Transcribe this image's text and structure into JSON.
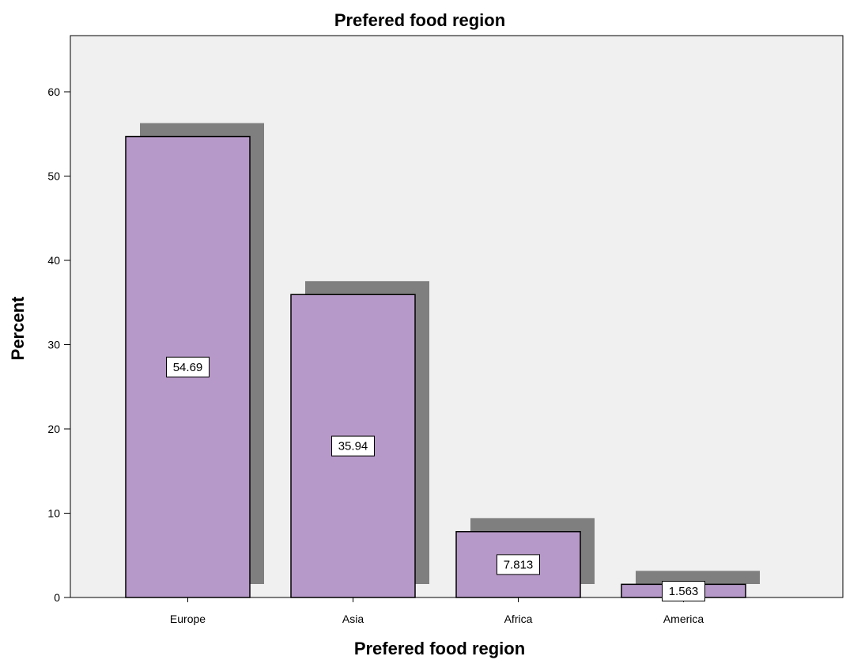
{
  "chart_data": {
    "type": "bar",
    "title": "Prefered food region",
    "xlabel": "Prefered food region",
    "ylabel": "Percent",
    "categories": [
      "Europe",
      "Asia",
      "Africa",
      "America"
    ],
    "values": [
      54.69,
      35.94,
      7.813,
      1.563
    ],
    "data_labels": [
      "54.69",
      "35.94",
      "7.813",
      "1.563"
    ],
    "ylim": [
      0,
      60
    ],
    "yticks": [
      0,
      10,
      20,
      30,
      40,
      50,
      60
    ],
    "grid": false,
    "legend": "none",
    "bar_style": "3d-shadow",
    "colors": {
      "bar_fill": "#b799c9",
      "bar_shadow": "#7f7f7f",
      "plot_background": "#f0f0f0",
      "axis": "#000000"
    }
  }
}
